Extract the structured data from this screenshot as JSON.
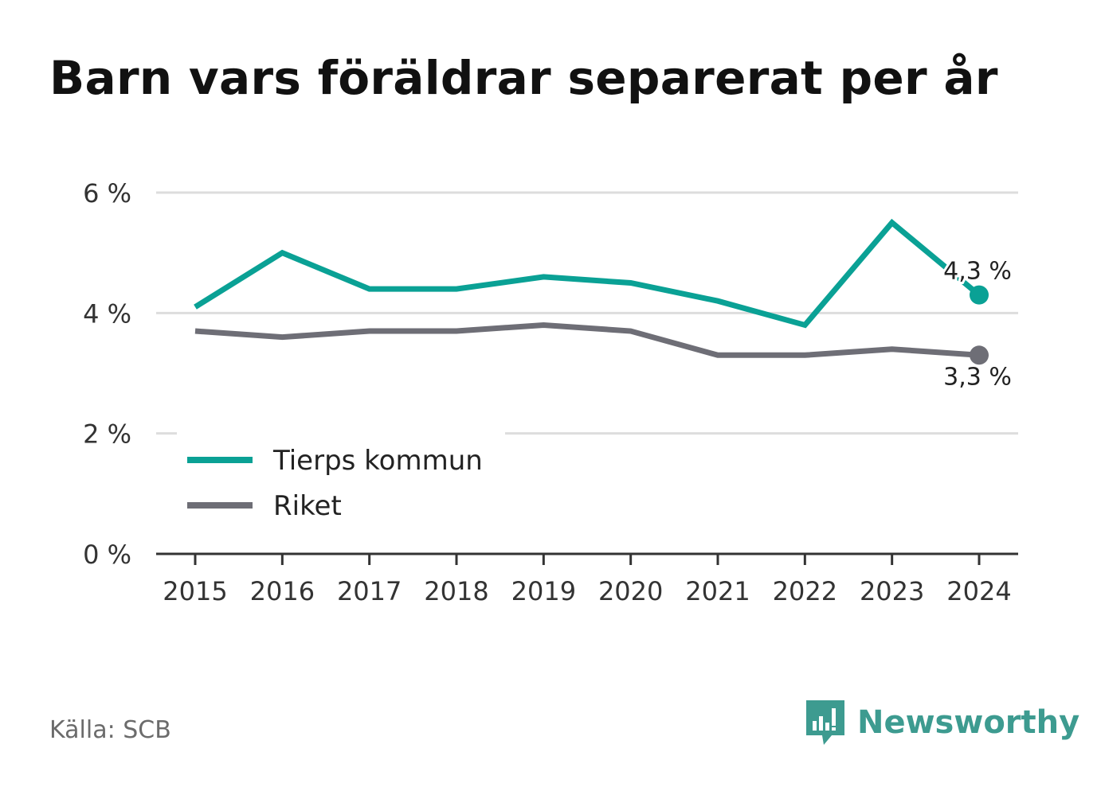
{
  "title": "Barn vars föräldrar separerat per år",
  "source": "Källa: SCB",
  "brand": "Newsworthy",
  "colors": {
    "tierp": "#0aa195",
    "riket": "#6e6e76",
    "grid": "#dddddd",
    "axis": "#333333",
    "brand": "#3d9b90"
  },
  "chart_data": {
    "type": "line",
    "x": [
      "2015",
      "2016",
      "2017",
      "2018",
      "2019",
      "2020",
      "2021",
      "2022",
      "2023",
      "2024"
    ],
    "series": [
      {
        "name": "Tierps kommun",
        "color": "#0aa195",
        "values": [
          4.1,
          5.0,
          4.4,
          4.4,
          4.6,
          4.5,
          4.2,
          3.8,
          5.5,
          4.3
        ],
        "end_label": "4,3 %"
      },
      {
        "name": "Riket",
        "color": "#6e6e76",
        "values": [
          3.7,
          3.6,
          3.7,
          3.7,
          3.8,
          3.7,
          3.3,
          3.3,
          3.4,
          3.3
        ],
        "end_label": "3,3 %"
      }
    ],
    "ylim": [
      0,
      6
    ],
    "yticks": [
      0,
      2,
      4,
      6
    ],
    "ytick_labels": [
      "0 %",
      "2 %",
      "4 %",
      "6 %"
    ],
    "grid": true,
    "legend_position": "bottom-left",
    "xlabel": "",
    "ylabel": ""
  }
}
